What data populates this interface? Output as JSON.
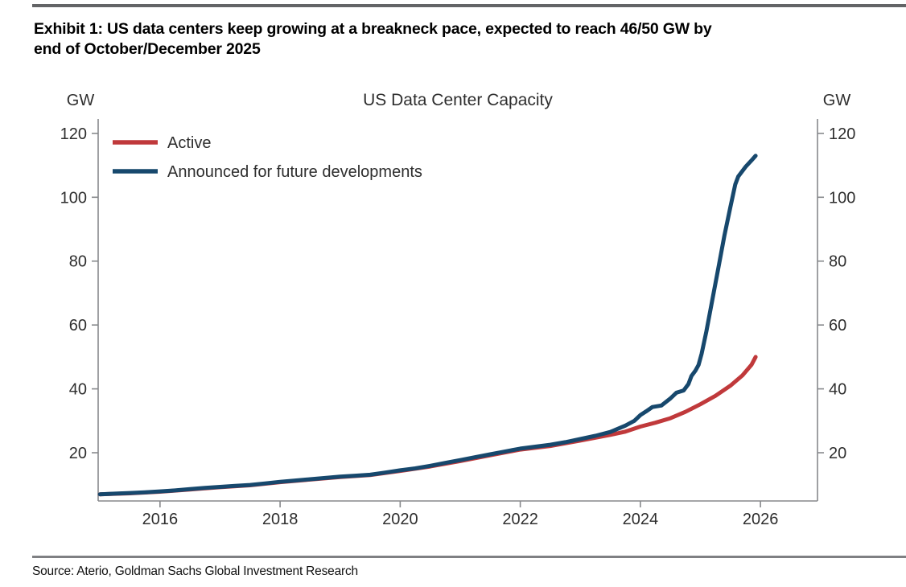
{
  "page": {
    "exhibit_title_line1": "Exhibit 1: US data centers keep growing at a breakneck pace, expected to reach 46/50 GW by",
    "exhibit_title_line2": "end of October/December 2025",
    "source_text": "Source: Aterio, Goldman Sachs Global Investment Research"
  },
  "chart_data": {
    "type": "line",
    "title": "US Data Center Capacity",
    "y_unit_left": "GW",
    "y_unit_right": "GW",
    "xlabel": "",
    "ylabel": "GW",
    "grid": false,
    "legend_position": "top-left",
    "axis_color": "#87898c",
    "text_color": "#3d3d3d",
    "x_range": [
      2014.97,
      2026.95
    ],
    "y_range": [
      4.9,
      124.5
    ],
    "x_ticks": [
      2016,
      2018,
      2020,
      2022,
      2024,
      2026
    ],
    "y_ticks": [
      20,
      40,
      60,
      80,
      100,
      120
    ],
    "series": [
      {
        "name": "Active",
        "color": "#c0393b",
        "points": [
          [
            2015.0,
            7.0
          ],
          [
            2015.5,
            7.3
          ],
          [
            2016.0,
            7.8
          ],
          [
            2016.5,
            8.5
          ],
          [
            2017.0,
            9.2
          ],
          [
            2017.5,
            9.8
          ],
          [
            2018.0,
            10.8
          ],
          [
            2018.5,
            11.6
          ],
          [
            2019.0,
            12.4
          ],
          [
            2019.5,
            13.0
          ],
          [
            2020.0,
            14.3
          ],
          [
            2020.5,
            15.7
          ],
          [
            2021.0,
            17.4
          ],
          [
            2021.5,
            19.2
          ],
          [
            2022.0,
            21.0
          ],
          [
            2022.5,
            22.1
          ],
          [
            2023.0,
            23.8
          ],
          [
            2023.5,
            25.6
          ],
          [
            2023.75,
            26.6
          ],
          [
            2024.0,
            28.2
          ],
          [
            2024.25,
            29.4
          ],
          [
            2024.5,
            30.8
          ],
          [
            2024.75,
            32.8
          ],
          [
            2025.0,
            35.2
          ],
          [
            2025.25,
            37.8
          ],
          [
            2025.5,
            41.0
          ],
          [
            2025.7,
            44.2
          ],
          [
            2025.85,
            47.5
          ],
          [
            2025.92,
            50.0
          ]
        ]
      },
      {
        "name": "Announced for future developments",
        "color": "#17486d",
        "points": [
          [
            2015.0,
            7.0
          ],
          [
            2015.25,
            7.2
          ],
          [
            2015.5,
            7.4
          ],
          [
            2015.75,
            7.6
          ],
          [
            2016.0,
            7.9
          ],
          [
            2016.25,
            8.2
          ],
          [
            2016.5,
            8.6
          ],
          [
            2016.75,
            9.0
          ],
          [
            2017.0,
            9.3
          ],
          [
            2017.25,
            9.6
          ],
          [
            2017.5,
            9.9
          ],
          [
            2017.75,
            10.4
          ],
          [
            2018.0,
            10.9
          ],
          [
            2018.25,
            11.3
          ],
          [
            2018.5,
            11.7
          ],
          [
            2018.75,
            12.1
          ],
          [
            2019.0,
            12.5
          ],
          [
            2019.25,
            12.8
          ],
          [
            2019.5,
            13.1
          ],
          [
            2019.75,
            13.8
          ],
          [
            2020.0,
            14.5
          ],
          [
            2020.25,
            15.1
          ],
          [
            2020.5,
            15.9
          ],
          [
            2020.75,
            16.8
          ],
          [
            2021.0,
            17.7
          ],
          [
            2021.25,
            18.6
          ],
          [
            2021.5,
            19.5
          ],
          [
            2021.75,
            20.4
          ],
          [
            2022.0,
            21.3
          ],
          [
            2022.25,
            21.9
          ],
          [
            2022.5,
            22.5
          ],
          [
            2022.75,
            23.3
          ],
          [
            2023.0,
            24.3
          ],
          [
            2023.25,
            25.3
          ],
          [
            2023.5,
            26.5
          ],
          [
            2023.75,
            28.5
          ],
          [
            2023.9,
            30.0
          ],
          [
            2024.0,
            31.8
          ],
          [
            2024.1,
            33.0
          ],
          [
            2024.2,
            34.3
          ],
          [
            2024.35,
            34.8
          ],
          [
            2024.5,
            37.0
          ],
          [
            2024.6,
            38.8
          ],
          [
            2024.72,
            39.5
          ],
          [
            2024.8,
            41.5
          ],
          [
            2024.85,
            44.0
          ],
          [
            2024.92,
            45.8
          ],
          [
            2024.97,
            47.5
          ],
          [
            2025.02,
            51.0
          ],
          [
            2025.1,
            58.0
          ],
          [
            2025.2,
            68.0
          ],
          [
            2025.3,
            78.0
          ],
          [
            2025.4,
            88.0
          ],
          [
            2025.5,
            97.0
          ],
          [
            2025.58,
            104.0
          ],
          [
            2025.63,
            106.5
          ],
          [
            2025.75,
            109.5
          ],
          [
            2025.85,
            111.5
          ],
          [
            2025.92,
            113.0
          ]
        ]
      }
    ]
  }
}
